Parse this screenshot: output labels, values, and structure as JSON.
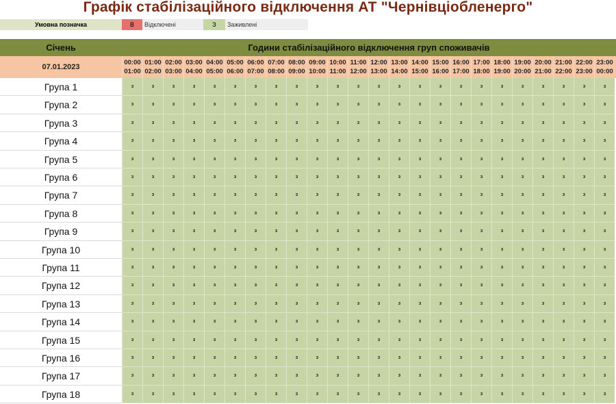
{
  "title": "Графік стабілізаційного відключення АТ \"Чернівціобленерго\"",
  "legend": {
    "label": "Умовна позначка",
    "off_code": "В",
    "off_text": "Відключені",
    "on_code": "З",
    "on_text": "Заживлені",
    "colors": {
      "off": "#e6716a",
      "on": "#c6d6a2"
    }
  },
  "header": {
    "month": "Січень",
    "title": "Години стабілізаційного відключення груп споживачів",
    "date": "07.01.2023"
  },
  "hours": [
    [
      "00:00",
      "01:00"
    ],
    [
      "01:00",
      "02:00"
    ],
    [
      "02:00",
      "03:00"
    ],
    [
      "03:00",
      "04:00"
    ],
    [
      "04:00",
      "05:00"
    ],
    [
      "05:00",
      "06:00"
    ],
    [
      "06:00",
      "07:00"
    ],
    [
      "07:00",
      "08:00"
    ],
    [
      "08:00",
      "09:00"
    ],
    [
      "09:00",
      "10:00"
    ],
    [
      "10:00",
      "11:00"
    ],
    [
      "11:00",
      "12:00"
    ],
    [
      "12:00",
      "13:00"
    ],
    [
      "13:00",
      "14:00"
    ],
    [
      "14:00",
      "15:00"
    ],
    [
      "15:00",
      "16:00"
    ],
    [
      "16:00",
      "17:00"
    ],
    [
      "17:00",
      "18:00"
    ],
    [
      "18:00",
      "19:00"
    ],
    [
      "19:00",
      "20:00"
    ],
    [
      "20:00",
      "21:00"
    ],
    [
      "21:00",
      "22:00"
    ],
    [
      "22:00",
      "23:00"
    ],
    [
      "23:00",
      "00:00"
    ]
  ],
  "groups": [
    {
      "name": "Група 1",
      "cells": [
        "з",
        "з",
        "з",
        "з",
        "з",
        "з",
        "з",
        "з",
        "з",
        "з",
        "з",
        "з",
        "з",
        "з",
        "з",
        "з",
        "з",
        "з",
        "з",
        "з",
        "з",
        "з",
        "з",
        "з"
      ]
    },
    {
      "name": "Група 2",
      "cells": [
        "з",
        "з",
        "з",
        "з",
        "з",
        "з",
        "з",
        "з",
        "з",
        "з",
        "з",
        "з",
        "з",
        "з",
        "з",
        "з",
        "з",
        "з",
        "з",
        "з",
        "з",
        "з",
        "з",
        "з"
      ]
    },
    {
      "name": "Група 3",
      "cells": [
        "з",
        "з",
        "з",
        "з",
        "з",
        "з",
        "з",
        "з",
        "з",
        "з",
        "з",
        "з",
        "з",
        "з",
        "з",
        "з",
        "з",
        "з",
        "з",
        "з",
        "з",
        "з",
        "з",
        "з"
      ]
    },
    {
      "name": "Група 4",
      "cells": [
        "з",
        "з",
        "з",
        "з",
        "з",
        "з",
        "з",
        "з",
        "з",
        "з",
        "з",
        "з",
        "з",
        "з",
        "з",
        "з",
        "з",
        "з",
        "з",
        "з",
        "з",
        "з",
        "з",
        "з"
      ]
    },
    {
      "name": "Група 5",
      "cells": [
        "з",
        "з",
        "з",
        "з",
        "з",
        "з",
        "з",
        "з",
        "з",
        "з",
        "з",
        "з",
        "з",
        "з",
        "з",
        "з",
        "з",
        "з",
        "з",
        "з",
        "з",
        "з",
        "з",
        "з"
      ]
    },
    {
      "name": "Група 6",
      "cells": [
        "з",
        "з",
        "з",
        "з",
        "з",
        "з",
        "з",
        "з",
        "з",
        "з",
        "з",
        "з",
        "з",
        "з",
        "з",
        "з",
        "з",
        "з",
        "з",
        "з",
        "з",
        "з",
        "з",
        "з"
      ]
    },
    {
      "name": "Група 7",
      "cells": [
        "з",
        "з",
        "з",
        "з",
        "з",
        "з",
        "з",
        "з",
        "з",
        "з",
        "з",
        "з",
        "з",
        "з",
        "з",
        "з",
        "з",
        "з",
        "з",
        "з",
        "з",
        "з",
        "з",
        "з"
      ]
    },
    {
      "name": "Група 8",
      "cells": [
        "з",
        "з",
        "з",
        "з",
        "з",
        "з",
        "з",
        "з",
        "з",
        "з",
        "з",
        "з",
        "з",
        "з",
        "з",
        "з",
        "з",
        "з",
        "з",
        "з",
        "з",
        "з",
        "з",
        "з"
      ]
    },
    {
      "name": "Група 9",
      "cells": [
        "з",
        "з",
        "з",
        "з",
        "з",
        "з",
        "з",
        "з",
        "з",
        "з",
        "з",
        "з",
        "з",
        "з",
        "з",
        "з",
        "з",
        "з",
        "з",
        "з",
        "з",
        "з",
        "з",
        "з"
      ]
    },
    {
      "name": "Група 10",
      "cells": [
        "з",
        "з",
        "з",
        "з",
        "з",
        "з",
        "з",
        "з",
        "з",
        "з",
        "з",
        "з",
        "з",
        "з",
        "з",
        "з",
        "з",
        "з",
        "з",
        "з",
        "з",
        "з",
        "з",
        "з"
      ]
    },
    {
      "name": "Група 11",
      "cells": [
        "з",
        "з",
        "з",
        "з",
        "з",
        "з",
        "з",
        "з",
        "з",
        "з",
        "з",
        "з",
        "з",
        "з",
        "з",
        "з",
        "з",
        "з",
        "з",
        "з",
        "з",
        "з",
        "з",
        "з"
      ]
    },
    {
      "name": "Група 12",
      "cells": [
        "з",
        "з",
        "з",
        "з",
        "з",
        "з",
        "з",
        "з",
        "з",
        "з",
        "з",
        "з",
        "з",
        "з",
        "з",
        "з",
        "з",
        "з",
        "з",
        "з",
        "з",
        "з",
        "з",
        "з"
      ]
    },
    {
      "name": "Група 13",
      "cells": [
        "з",
        "з",
        "з",
        "з",
        "з",
        "з",
        "з",
        "з",
        "з",
        "з",
        "з",
        "з",
        "з",
        "з",
        "з",
        "з",
        "з",
        "з",
        "з",
        "з",
        "з",
        "з",
        "з",
        "з"
      ]
    },
    {
      "name": "Група 14",
      "cells": [
        "з",
        "з",
        "з",
        "з",
        "з",
        "з",
        "з",
        "з",
        "з",
        "з",
        "з",
        "з",
        "з",
        "з",
        "з",
        "з",
        "з",
        "з",
        "з",
        "з",
        "з",
        "з",
        "з",
        "з"
      ]
    },
    {
      "name": "Група 15",
      "cells": [
        "з",
        "з",
        "з",
        "з",
        "з",
        "з",
        "з",
        "з",
        "з",
        "з",
        "з",
        "з",
        "з",
        "з",
        "з",
        "з",
        "з",
        "з",
        "з",
        "з",
        "з",
        "з",
        "з",
        "з"
      ]
    },
    {
      "name": "Група 16",
      "cells": [
        "з",
        "з",
        "з",
        "з",
        "з",
        "з",
        "з",
        "з",
        "з",
        "з",
        "з",
        "з",
        "з",
        "з",
        "з",
        "з",
        "з",
        "з",
        "з",
        "з",
        "з",
        "з",
        "з",
        "з"
      ]
    },
    {
      "name": "Група 17",
      "cells": [
        "з",
        "з",
        "з",
        "з",
        "з",
        "з",
        "з",
        "з",
        "з",
        "з",
        "з",
        "з",
        "з",
        "з",
        "з",
        "з",
        "з",
        "з",
        "з",
        "з",
        "з",
        "з",
        "з",
        "з"
      ]
    },
    {
      "name": "Група 18",
      "cells": [
        "з",
        "з",
        "з",
        "з",
        "з",
        "з",
        "з",
        "з",
        "з",
        "з",
        "з",
        "з",
        "з",
        "з",
        "з",
        "з",
        "з",
        "з",
        "з",
        "з",
        "з",
        "з",
        "з",
        "з"
      ]
    }
  ]
}
